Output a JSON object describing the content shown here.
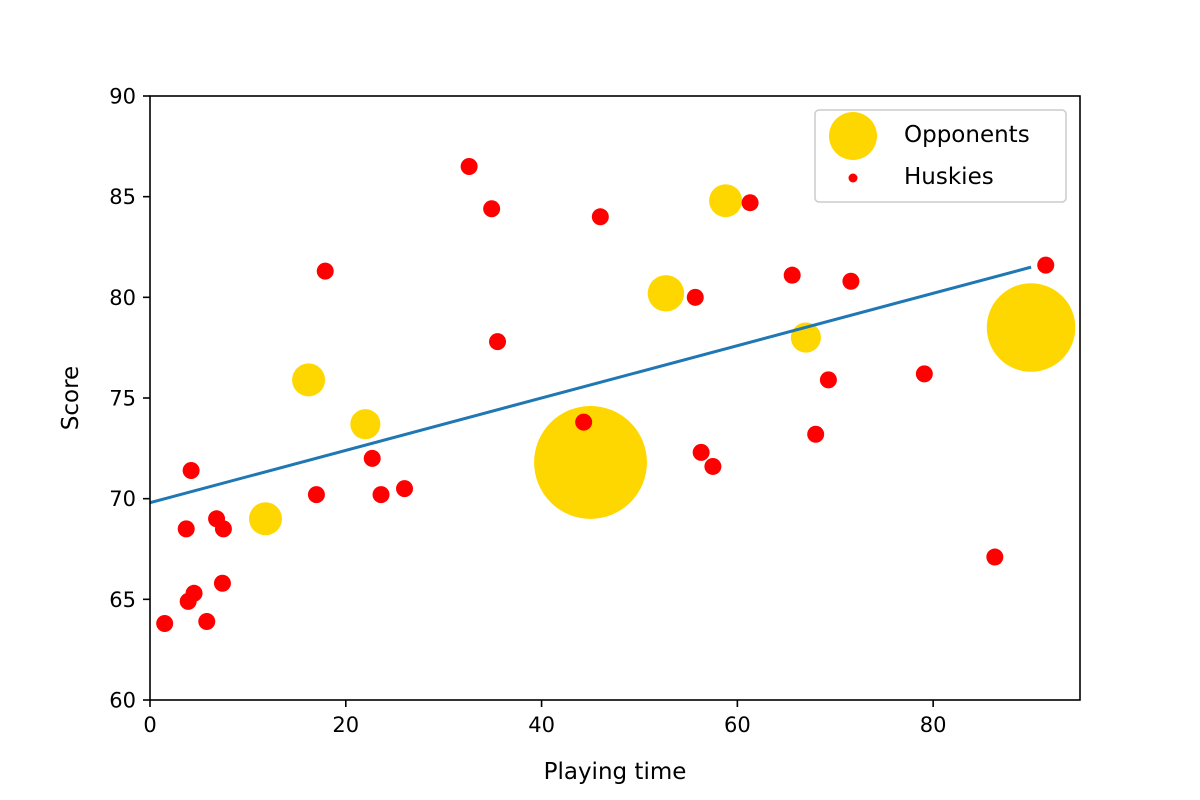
{
  "chart_data": {
    "type": "scatter",
    "title": "",
    "xlabel": "Playing time",
    "ylabel": "Score",
    "xlim": [
      0,
      95
    ],
    "ylim": [
      60,
      90
    ],
    "xticks": [
      0,
      20,
      40,
      60,
      80
    ],
    "yticks": [
      60,
      65,
      70,
      75,
      80,
      85,
      90
    ],
    "grid": false,
    "legend_position": "top-right",
    "series": [
      {
        "name": "Opponents",
        "color": "#ffd700",
        "marker_size_encodes": "relative size",
        "points": [
          {
            "x": 11.8,
            "y": 69.0,
            "size": 1.8
          },
          {
            "x": 16.2,
            "y": 75.9,
            "size": 1.8
          },
          {
            "x": 22.0,
            "y": 73.7,
            "size": 1.5
          },
          {
            "x": 45.0,
            "y": 71.8,
            "size": 26.0
          },
          {
            "x": 52.7,
            "y": 80.2,
            "size": 2.2
          },
          {
            "x": 58.8,
            "y": 84.8,
            "size": 1.8
          },
          {
            "x": 67.0,
            "y": 78.0,
            "size": 1.5
          },
          {
            "x": 90.0,
            "y": 78.5,
            "size": 16.0
          }
        ]
      },
      {
        "name": "Huskies",
        "color": "#ff0000",
        "points": [
          {
            "x": 1.5,
            "y": 63.8
          },
          {
            "x": 3.7,
            "y": 68.5
          },
          {
            "x": 3.9,
            "y": 64.9
          },
          {
            "x": 4.2,
            "y": 71.4
          },
          {
            "x": 4.5,
            "y": 65.3
          },
          {
            "x": 5.8,
            "y": 63.9
          },
          {
            "x": 6.8,
            "y": 69.0
          },
          {
            "x": 7.5,
            "y": 68.5
          },
          {
            "x": 7.4,
            "y": 65.8
          },
          {
            "x": 17.0,
            "y": 70.2
          },
          {
            "x": 17.9,
            "y": 81.3
          },
          {
            "x": 22.7,
            "y": 72.0
          },
          {
            "x": 23.6,
            "y": 70.2
          },
          {
            "x": 26.0,
            "y": 70.5
          },
          {
            "x": 32.6,
            "y": 86.5
          },
          {
            "x": 34.9,
            "y": 84.4
          },
          {
            "x": 35.5,
            "y": 77.8
          },
          {
            "x": 44.3,
            "y": 73.8
          },
          {
            "x": 46.0,
            "y": 84.0
          },
          {
            "x": 55.7,
            "y": 80.0
          },
          {
            "x": 56.3,
            "y": 72.3
          },
          {
            "x": 57.5,
            "y": 71.6
          },
          {
            "x": 61.3,
            "y": 84.7
          },
          {
            "x": 65.6,
            "y": 81.1
          },
          {
            "x": 68.0,
            "y": 73.2
          },
          {
            "x": 69.3,
            "y": 75.9
          },
          {
            "x": 71.6,
            "y": 80.8
          },
          {
            "x": 79.1,
            "y": 76.2
          },
          {
            "x": 86.3,
            "y": 67.1
          },
          {
            "x": 91.5,
            "y": 81.6
          }
        ]
      }
    ],
    "trend_line": {
      "color": "#1f77b4",
      "points": [
        {
          "x": 0,
          "y": 69.8
        },
        {
          "x": 90,
          "y": 81.5
        }
      ]
    }
  }
}
